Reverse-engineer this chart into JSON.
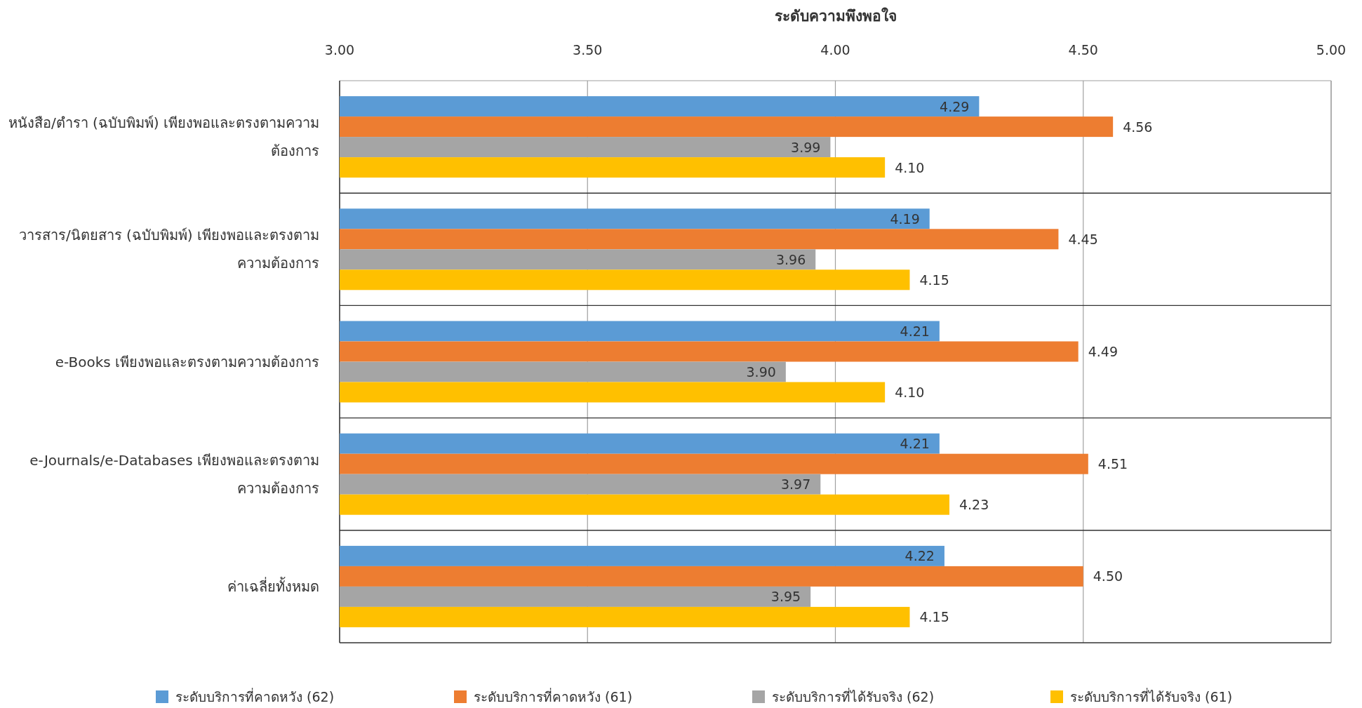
{
  "chart_data": {
    "type": "bar",
    "orientation": "horizontal",
    "xlabel": "ระดับความพึงพอใจ",
    "categories": [
      "หนังสือ/ตำรา (ฉบับพิมพ์) เพียงพอและตรงตามความต้องการ",
      "วารสาร/นิตยสาร (ฉบับพิมพ์) เพียงพอและตรงตามความต้องการ",
      "e-Books เพียงพอและตรงตามความต้องการ",
      "e-Journals/e-Databases เพียงพอและตรงตามความต้องการ",
      "ค่าเฉลี่ยทั้งหมด"
    ],
    "series": [
      {
        "name": "ระดับบริการที่คาดหวัง (62)",
        "color": "#5b9bd5",
        "values": [
          4.29,
          4.19,
          4.21,
          4.21,
          4.22
        ],
        "value_labels": [
          "4.29",
          "4.19",
          "4.21",
          "4.21",
          "4.22"
        ]
      },
      {
        "name": "ระดับบริการที่คาดหวัง (61)",
        "color": "#ed7d31",
        "values": [
          4.56,
          4.45,
          4.49,
          4.51,
          4.5
        ],
        "value_labels": [
          "4.56",
          "4.45",
          "4.49",
          "4.51",
          "4.50"
        ]
      },
      {
        "name": "ระดับบริการที่ได้รับจริง (62)",
        "color": "#a5a5a5",
        "values": [
          3.99,
          3.96,
          3.9,
          3.97,
          3.95
        ],
        "value_labels": [
          "3.99",
          "3.96",
          "3.90",
          "3.97",
          "3.95"
        ]
      },
      {
        "name": "ระดับบริการที่ได้รับจริง (61)",
        "color": "#ffc000",
        "values": [
          4.1,
          4.15,
          4.1,
          4.23,
          4.15
        ],
        "value_labels": [
          "4.10",
          "4.15",
          "4.10",
          "4.23",
          "4.15"
        ]
      }
    ],
    "xlim": [
      3,
      5
    ],
    "xticks": [
      {
        "value": 3,
        "label": "3.00"
      },
      {
        "value": 3.5,
        "label": "3.50"
      },
      {
        "value": 4,
        "label": "4.00"
      },
      {
        "value": 4.5,
        "label": "4.50"
      },
      {
        "value": 5,
        "label": "5.00"
      }
    ],
    "grid": true,
    "legend": "bottom"
  }
}
